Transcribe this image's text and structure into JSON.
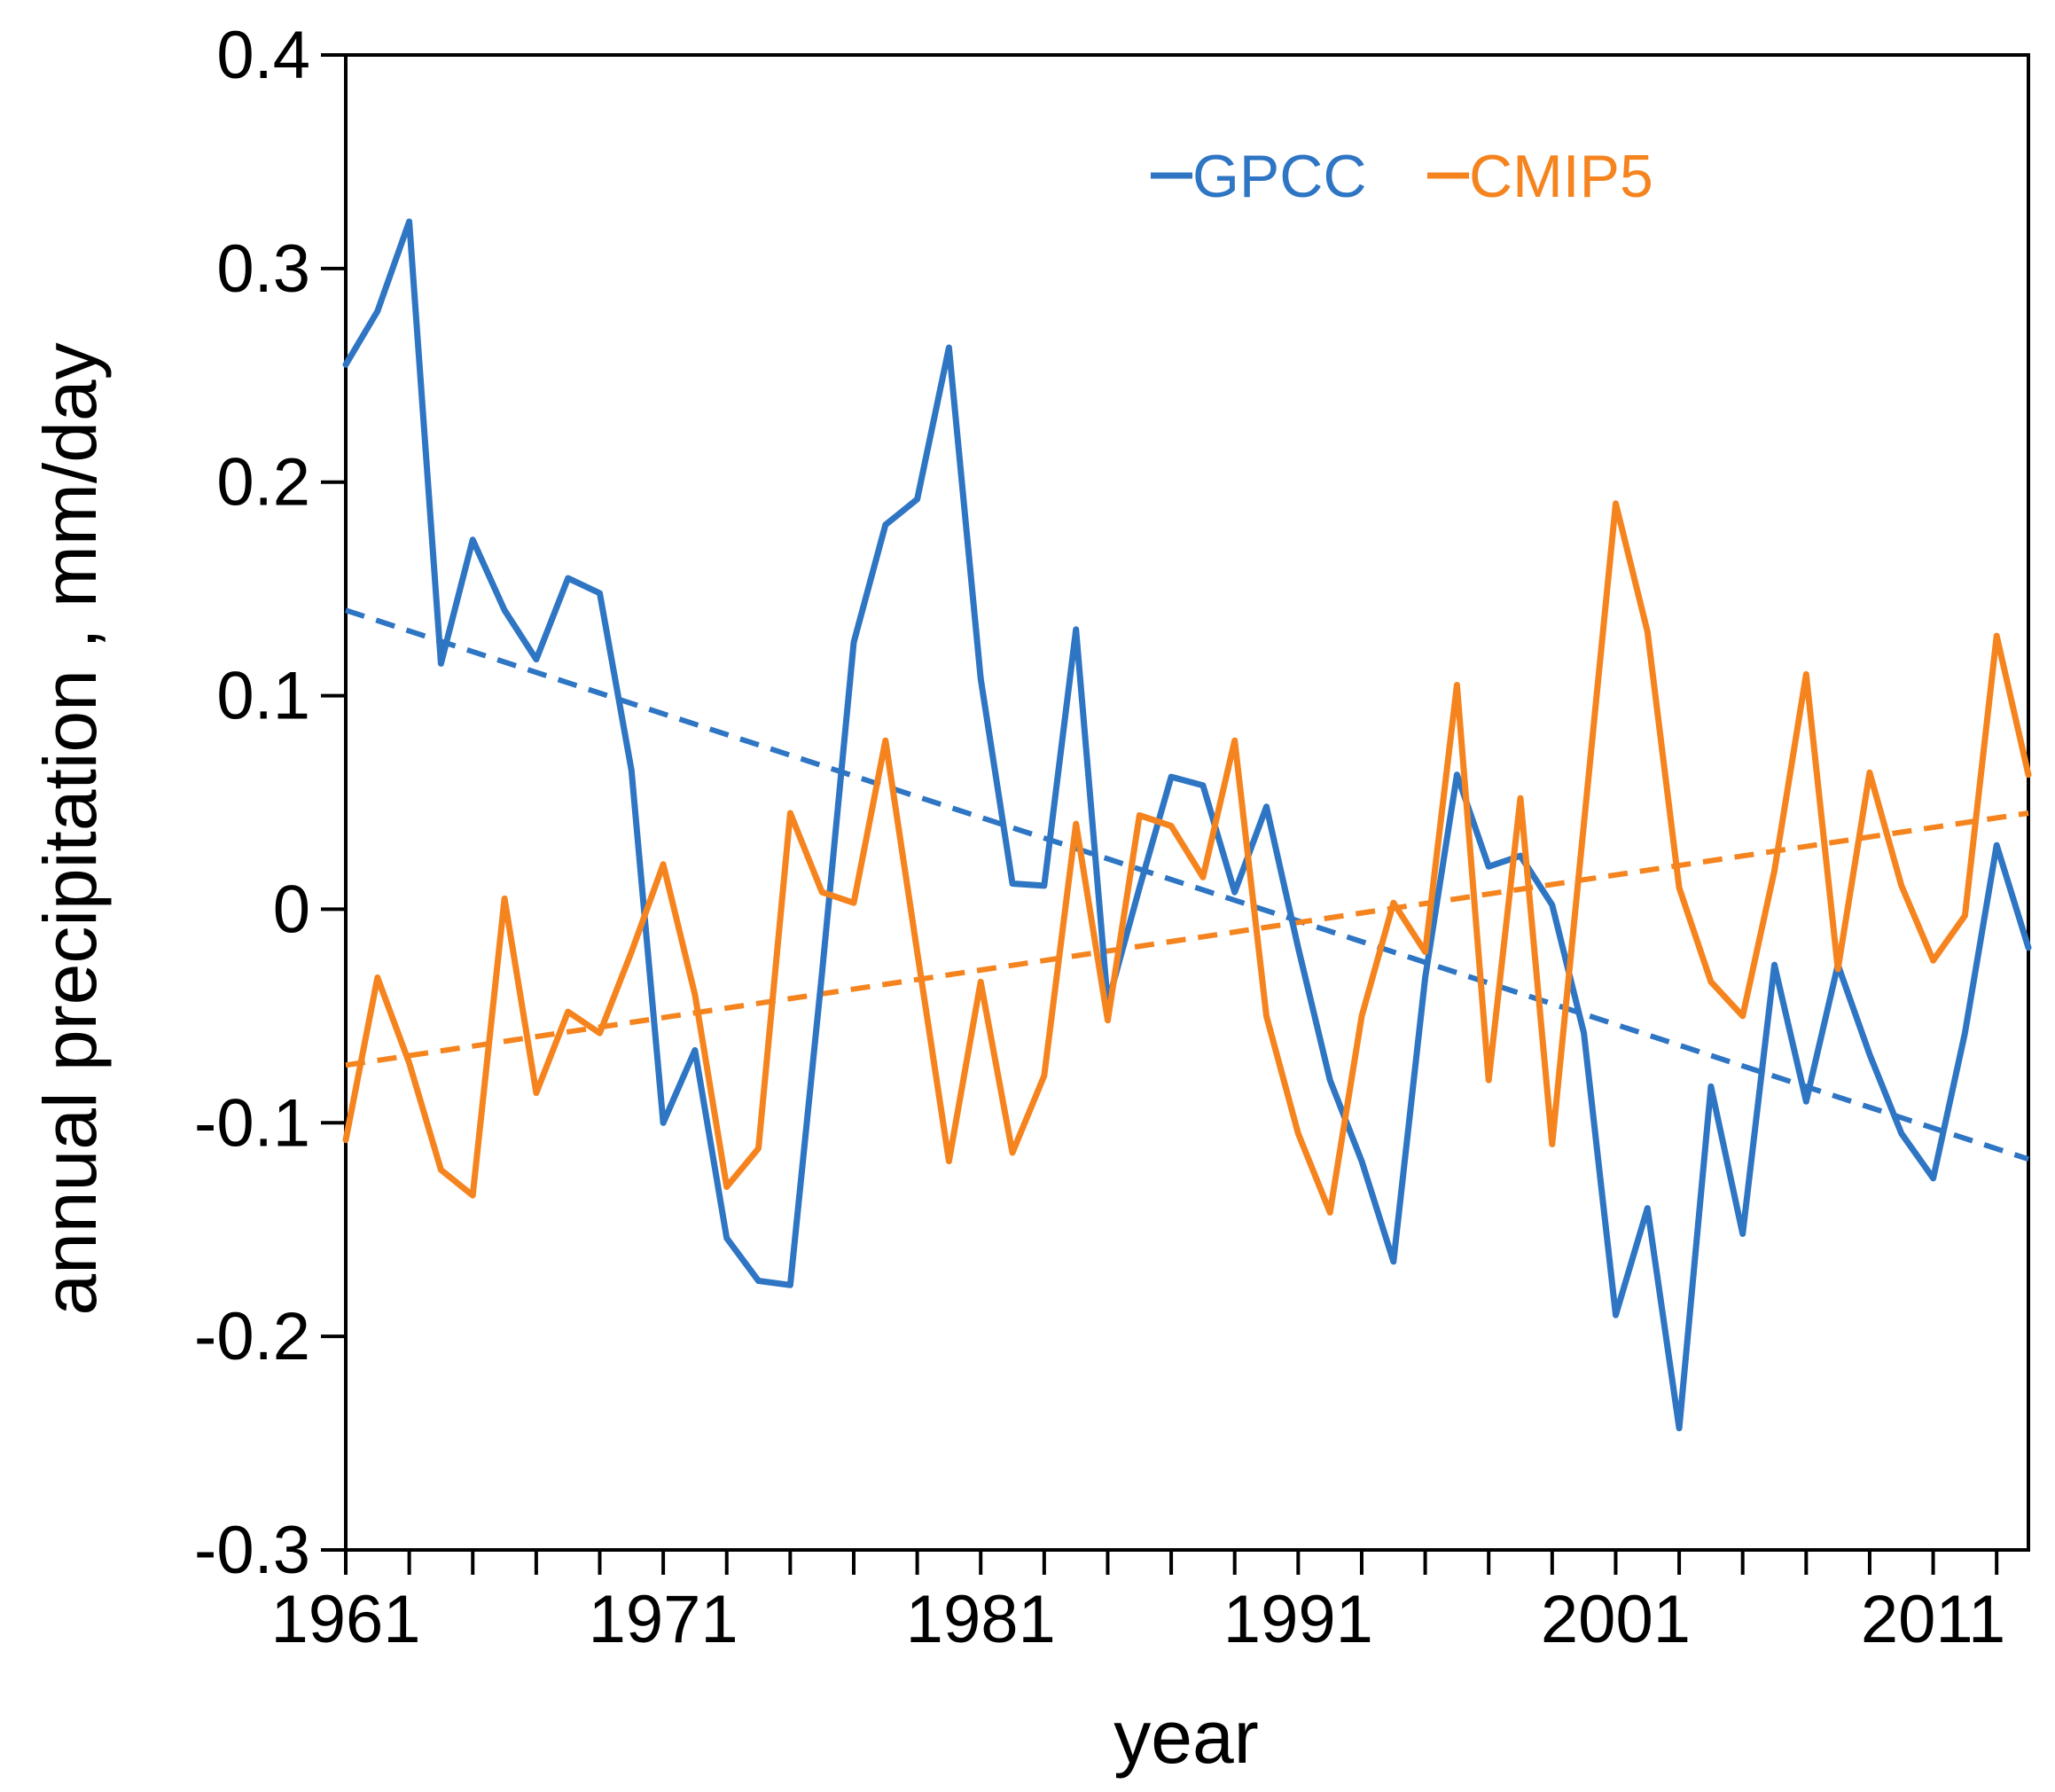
{
  "chart_data": {
    "type": "line",
    "title": "",
    "xlabel": "year",
    "ylabel": "annual precipitation , mm/day",
    "xlim": [
      1961,
      2014
    ],
    "ylim": [
      -0.3,
      0.4
    ],
    "yticks": [
      0.4,
      0.3,
      0.2,
      0.1,
      0,
      -0.1,
      -0.2,
      -0.3
    ],
    "ytick_labels": [
      "0.4",
      "0.3",
      "0.2",
      "0.1",
      "0",
      "-0.1",
      "-0.2",
      "-0.3"
    ],
    "xtick_labels": [
      "1961",
      "1971",
      "1981",
      "1991",
      "2001",
      "2011"
    ],
    "x": [
      1961,
      1962,
      1963,
      1964,
      1965,
      1966,
      1967,
      1968,
      1969,
      1970,
      1971,
      1972,
      1973,
      1974,
      1975,
      1976,
      1977,
      1978,
      1979,
      1980,
      1981,
      1982,
      1983,
      1984,
      1985,
      1986,
      1987,
      1988,
      1989,
      1990,
      1991,
      1992,
      1993,
      1994,
      1995,
      1996,
      1997,
      1998,
      1999,
      2000,
      2001,
      2002,
      2003,
      2004,
      2005,
      2006,
      2007,
      2008,
      2009,
      2010,
      2011,
      2012,
      2013,
      2014
    ],
    "series": [
      {
        "name": "GPCC",
        "color": "#2E75C3",
        "values": [
          0.255,
          0.28,
          0.322,
          0.115,
          0.173,
          0.14,
          0.117,
          0.155,
          0.148,
          0.065,
          -0.1,
          -0.066,
          -0.154,
          -0.174,
          -0.176,
          -0.03,
          0.125,
          0.18,
          0.192,
          0.263,
          0.108,
          0.012,
          0.011,
          0.131,
          -0.044,
          0.01,
          0.062,
          0.058,
          0.008,
          0.048,
          -0.018,
          -0.08,
          -0.118,
          -0.165,
          -0.032,
          0.063,
          0.02,
          0.025,
          0.002,
          -0.058,
          -0.19,
          -0.14,
          -0.243,
          -0.083,
          -0.152,
          -0.026,
          -0.09,
          -0.026,
          -0.068,
          -0.105,
          -0.126,
          -0.058,
          0.03,
          -0.018
        ]
      },
      {
        "name": "CMIP5",
        "color": "#F5841F",
        "values": [
          -0.108,
          -0.032,
          -0.072,
          -0.122,
          -0.134,
          0.005,
          -0.086,
          -0.048,
          -0.058,
          -0.02,
          0.021,
          -0.04,
          -0.13,
          -0.112,
          0.045,
          0.008,
          0.003,
          0.079,
          -0.02,
          -0.118,
          -0.034,
          -0.114,
          -0.078,
          0.04,
          -0.052,
          0.044,
          0.039,
          0.015,
          0.079,
          -0.05,
          -0.105,
          -0.142,
          -0.05,
          0.003,
          -0.02,
          0.105,
          -0.08,
          0.052,
          -0.11,
          0.04,
          0.19,
          0.13,
          0.01,
          -0.034,
          -0.05,
          0.018,
          0.11,
          -0.028,
          0.064,
          0.011,
          -0.024,
          -0.003,
          0.128,
          0.063
        ]
      }
    ],
    "trendlines": [
      {
        "name": "GPCC trend",
        "color": "#2E75C3",
        "x": [
          1961,
          2014
        ],
        "values": [
          0.14,
          -0.117
        ]
      },
      {
        "name": "CMIP5 trend",
        "color": "#F5841F",
        "x": [
          1961,
          2014
        ],
        "values": [
          -0.073,
          0.045
        ]
      }
    ],
    "legend": {
      "position": "top-right",
      "entries": [
        {
          "label": "GPCC",
          "color": "#2E75C3"
        },
        {
          "label": "CMIP5",
          "color": "#F5841F"
        }
      ]
    }
  }
}
